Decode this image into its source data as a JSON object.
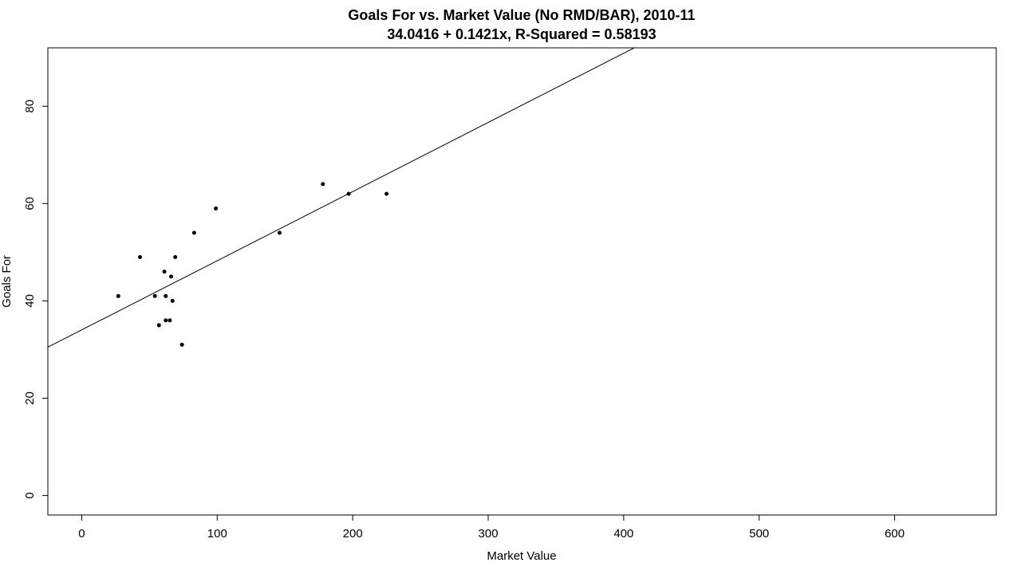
{
  "chart_data": {
    "type": "scatter",
    "title": "Goals For vs. Market Value (No RMD/BAR), 2010-11",
    "subtitle": "34.0416 + 0.1421x, R-Squared = 0.58193",
    "xlabel": "Market Value",
    "ylabel": "Goals For",
    "xlim": [
      -25,
      675
    ],
    "ylim": [
      -4,
      92
    ],
    "x_ticks": [
      0,
      100,
      200,
      300,
      400,
      500,
      600
    ],
    "y_ticks": [
      0,
      20,
      40,
      60,
      80
    ],
    "grid": false,
    "legend": "none",
    "colors": {
      "points": "#000000",
      "line": "#000000",
      "frame": "#000000",
      "background": "#ffffff"
    },
    "regression": {
      "intercept": 34.0416,
      "slope": 0.1421
    },
    "points": [
      {
        "x": 27,
        "y": 41
      },
      {
        "x": 43,
        "y": 49
      },
      {
        "x": 54,
        "y": 41
      },
      {
        "x": 57,
        "y": 35
      },
      {
        "x": 61,
        "y": 46
      },
      {
        "x": 62,
        "y": 36
      },
      {
        "x": 62,
        "y": 41
      },
      {
        "x": 65,
        "y": 36
      },
      {
        "x": 66,
        "y": 45
      },
      {
        "x": 67,
        "y": 40
      },
      {
        "x": 69,
        "y": 49
      },
      {
        "x": 74,
        "y": 31
      },
      {
        "x": 83,
        "y": 54
      },
      {
        "x": 99,
        "y": 59
      },
      {
        "x": 146,
        "y": 54
      },
      {
        "x": 178,
        "y": 64
      },
      {
        "x": 197,
        "y": 62
      },
      {
        "x": 225,
        "y": 62
      }
    ]
  }
}
